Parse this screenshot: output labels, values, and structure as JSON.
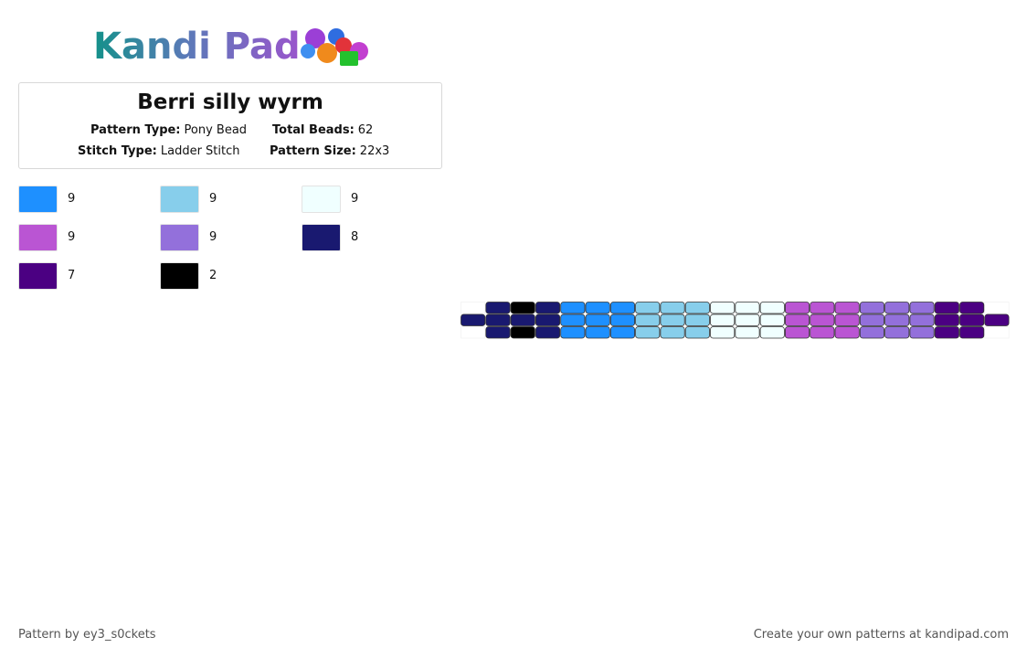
{
  "logo": {
    "text": "Kandi Pad"
  },
  "header": {
    "title": "Berri silly wyrm",
    "fields": [
      {
        "label": "Pattern Type:",
        "value": "Pony Bead"
      },
      {
        "label": "Total Beads:",
        "value": "62"
      },
      {
        "label": "Stitch Type:",
        "value": "Ladder Stitch"
      },
      {
        "label": "Pattern Size:",
        "value": "22x3"
      }
    ]
  },
  "legend": [
    {
      "color": "#1e90ff",
      "count": "9"
    },
    {
      "color": "#87ceeb",
      "count": "9"
    },
    {
      "color": "#f0ffff",
      "count": "9"
    },
    {
      "color": "#ba55d3",
      "count": "9"
    },
    {
      "color": "#9370db",
      "count": "9"
    },
    {
      "color": "#191970",
      "count": "8"
    },
    {
      "color": "#4b0082",
      "count": "7"
    },
    {
      "color": "#000000",
      "count": "2"
    }
  ],
  "pattern": {
    "rows": [
      [
        null,
        "#191970",
        "#000000",
        "#191970",
        "#1e90ff",
        "#1e90ff",
        "#1e90ff",
        "#87ceeb",
        "#87ceeb",
        "#87ceeb",
        "#f0ffff",
        "#f0ffff",
        "#f0ffff",
        "#ba55d3",
        "#ba55d3",
        "#ba55d3",
        "#9370db",
        "#9370db",
        "#9370db",
        "#4b0082",
        "#4b0082",
        null
      ],
      [
        "#191970",
        "#191970",
        "#191970",
        "#191970",
        "#1e90ff",
        "#1e90ff",
        "#1e90ff",
        "#87ceeb",
        "#87ceeb",
        "#87ceeb",
        "#f0ffff",
        "#f0ffff",
        "#f0ffff",
        "#ba55d3",
        "#ba55d3",
        "#ba55d3",
        "#9370db",
        "#9370db",
        "#9370db",
        "#4b0082",
        "#4b0082",
        "#4b0082"
      ],
      [
        null,
        "#191970",
        "#000000",
        "#191970",
        "#1e90ff",
        "#1e90ff",
        "#1e90ff",
        "#87ceeb",
        "#87ceeb",
        "#87ceeb",
        "#f0ffff",
        "#f0ffff",
        "#f0ffff",
        "#ba55d3",
        "#ba55d3",
        "#ba55d3",
        "#9370db",
        "#9370db",
        "#9370db",
        "#4b0082",
        "#4b0082",
        null
      ]
    ]
  },
  "footer": {
    "left": "Pattern by ey3_s0ckets",
    "right": "Create your own patterns at kandipad.com"
  }
}
